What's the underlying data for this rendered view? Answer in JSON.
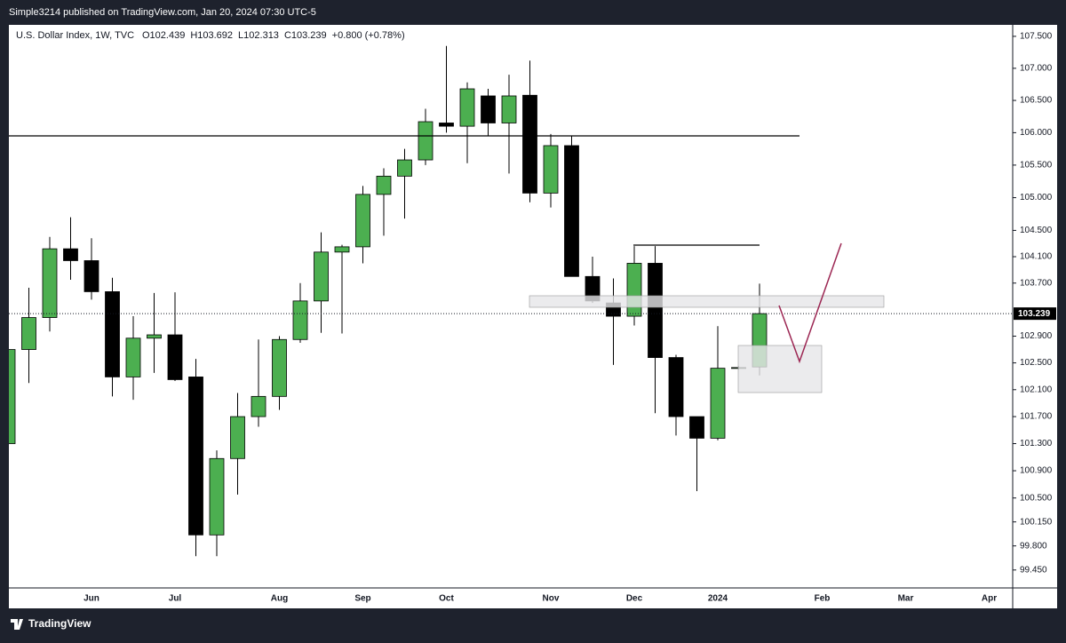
{
  "publisher": "Simple3214 published on TradingView.com, Jan 20, 2024 07:30 UTC-5",
  "brand": "TradingView",
  "chart_data": {
    "type": "candlestick",
    "title": "U.S. Dollar Index, 1W, TVC",
    "legend_values": [
      "O102.439",
      "H103.692",
      "L102.313",
      "C103.239",
      "+0.800 (+0.78%)"
    ],
    "categories": [
      null,
      null,
      null,
      null,
      "Jun",
      null,
      null,
      null,
      "Jul",
      null,
      null,
      null,
      null,
      "Aug",
      null,
      null,
      null,
      "Sep",
      null,
      null,
      null,
      "Oct",
      null,
      null,
      null,
      null,
      "Nov",
      null,
      null,
      null,
      "Dec",
      null,
      null,
      null,
      "2024",
      null,
      null,
      null,
      null,
      "Feb",
      null,
      null,
      null,
      "Mar",
      null,
      null,
      null,
      "Apr",
      null
    ],
    "open": [
      101.3,
      102.7,
      103.18,
      104.22,
      104.04,
      103.57,
      102.29,
      102.87,
      102.92,
      102.29,
      99.96,
      101.08,
      101.7,
      102.0,
      102.85,
      103.43,
      104.17,
      104.25,
      105.05,
      105.33,
      105.58,
      106.15,
      106.1,
      106.57,
      106.15,
      106.58,
      105.07,
      105.8,
      103.8,
      103.4,
      103.2,
      104.0,
      102.58,
      101.7,
      101.38,
      102.42,
      102.439,
      null,
      null,
      null,
      null,
      null,
      null,
      null,
      null,
      null,
      null,
      null,
      null
    ],
    "high": [
      102.75,
      103.63,
      104.4,
      104.7,
      104.38,
      103.78,
      103.2,
      103.55,
      103.56,
      102.56,
      101.2,
      102.05,
      102.85,
      102.9,
      103.7,
      104.47,
      104.28,
      105.18,
      105.45,
      105.75,
      106.37,
      107.35,
      106.78,
      106.68,
      106.9,
      107.12,
      105.98,
      105.95,
      104.1,
      103.77,
      104.26,
      104.26,
      102.62,
      101.7,
      103.05,
      102.45,
      103.692,
      null,
      null,
      null,
      null,
      null,
      null,
      null,
      null,
      null,
      null,
      null,
      null
    ],
    "low": [
      101.05,
      102.2,
      102.97,
      103.75,
      103.45,
      102.0,
      101.95,
      102.35,
      102.23,
      99.65,
      99.65,
      100.55,
      101.55,
      101.8,
      102.8,
      102.95,
      102.94,
      104.0,
      104.42,
      104.68,
      105.5,
      106.0,
      105.53,
      105.95,
      105.37,
      104.93,
      104.85,
      103.8,
      103.4,
      102.47,
      103.06,
      101.75,
      101.42,
      100.6,
      101.35,
      102.4,
      102.313,
      null,
      null,
      null,
      null,
      null,
      null,
      null,
      null,
      null,
      null,
      null,
      null
    ],
    "close": [
      102.7,
      103.18,
      104.22,
      104.04,
      103.57,
      102.29,
      102.87,
      102.92,
      102.25,
      99.96,
      101.08,
      101.7,
      102.0,
      102.85,
      103.43,
      104.17,
      104.25,
      105.05,
      105.33,
      105.58,
      106.17,
      106.1,
      106.68,
      106.15,
      106.57,
      105.07,
      105.8,
      103.8,
      103.43,
      103.2,
      104.0,
      102.58,
      101.7,
      101.38,
      102.42,
      102.43,
      103.239,
      null,
      null,
      null,
      null,
      null,
      null,
      null,
      null,
      null,
      null,
      null,
      null
    ],
    "up_color": "#4caf50",
    "down_color": "#000000",
    "last_price": 103.239,
    "log_scale": true,
    "ylim": [
      99.19,
      107.68
    ],
    "yticks": [
      {
        "value": 99.45,
        "label": "99.450"
      },
      {
        "value": 99.8,
        "label": "99.800"
      },
      {
        "value": 100.15,
        "label": "100.150"
      },
      {
        "value": 100.5,
        "label": "100.500"
      },
      {
        "value": 100.9,
        "label": "100.900"
      },
      {
        "value": 101.3,
        "label": "101.300"
      },
      {
        "value": 101.7,
        "label": "101.700"
      },
      {
        "value": 102.1,
        "label": "102.100"
      },
      {
        "value": 102.5,
        "label": "102.500"
      },
      {
        "value": 102.9,
        "label": "102.900"
      },
      {
        "value": 103.7,
        "label": "103.700"
      },
      {
        "value": 104.1,
        "label": "104.100"
      },
      {
        "value": 104.5,
        "label": "104.500"
      },
      {
        "value": 105,
        "label": "105.000"
      },
      {
        "value": 105.5,
        "label": "105.500"
      },
      {
        "value": 106,
        "label": "106.000"
      },
      {
        "value": 106.5,
        "label": "106.500"
      },
      {
        "value": 107,
        "label": "107.000"
      },
      {
        "value": 107.5,
        "label": "107.500"
      }
    ],
    "grid": false
  }
}
